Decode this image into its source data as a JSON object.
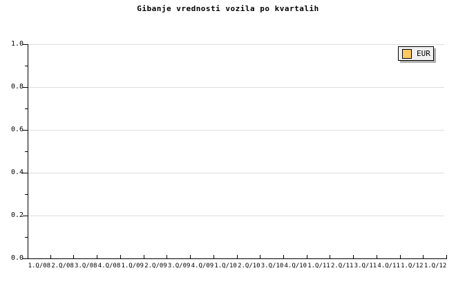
{
  "title": "Gibanje vrednosti vozila po kvartalih",
  "colors": {
    "background": "#ffffff",
    "axis": "#000000",
    "grid": "#dddddd",
    "legend_bg": "#f0f0f0",
    "legend_shadow": "#b0b0b0",
    "series_eur": "#ffc966"
  },
  "legend": {
    "position": "top-right",
    "items": [
      {
        "label": "EUR",
        "swatch_color": "#ffc966"
      }
    ]
  },
  "chart_data": {
    "type": "line",
    "title": "Gibanje vrednosti vozila po kvartalih",
    "xlabel": "",
    "ylabel": "",
    "categories": [
      "1.Q/08",
      "2.Q/08",
      "3.Q/08",
      "4.Q/08",
      "1.Q/09",
      "2.Q/09",
      "3.Q/09",
      "4.Q/09",
      "1.Q/10",
      "2.Q/10",
      "3.Q/10",
      "4.Q/10",
      "1.Q/11",
      "2.Q/11",
      "3.Q/11",
      "4.Q/11",
      "1.Q/12",
      "1.Q/12"
    ],
    "series": [
      {
        "name": "EUR",
        "values": []
      }
    ],
    "ylim": [
      0.0,
      1.0
    ],
    "yticks": [
      0.0,
      0.2,
      0.4,
      0.6,
      0.8,
      1.0
    ],
    "ytick_labels": [
      "0.0",
      "0.2",
      "0.4",
      "0.6",
      "0.8",
      "1.0"
    ],
    "yticks_minor": [
      0.1,
      0.3,
      0.5,
      0.7,
      0.9
    ],
    "grid": "horizontal-major",
    "legend_position": "top-right",
    "plot_empty": true
  }
}
